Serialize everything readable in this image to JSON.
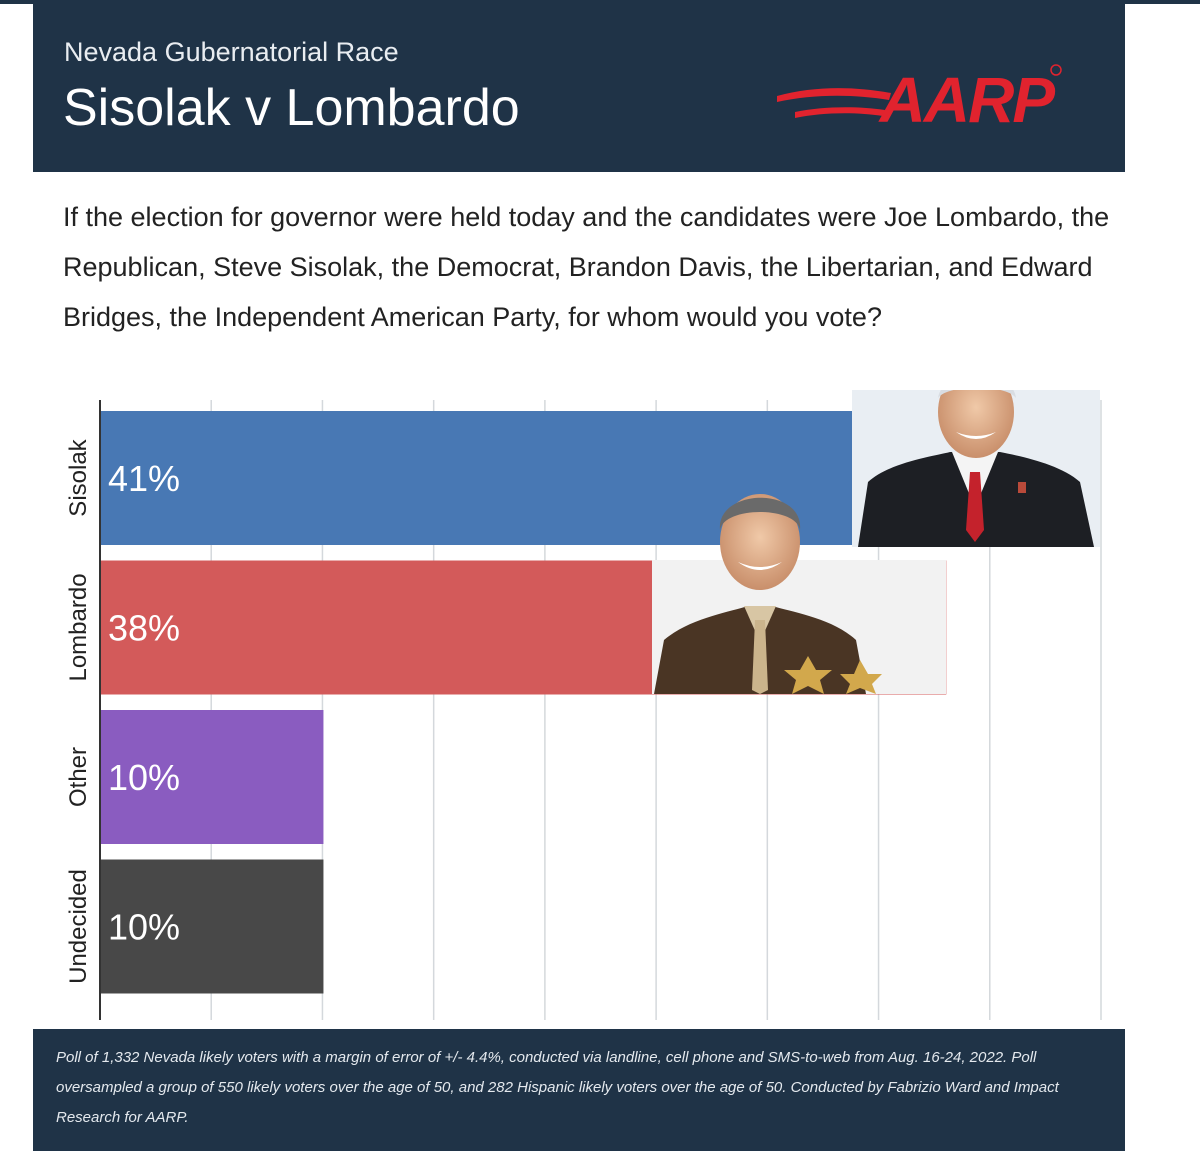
{
  "header": {
    "kicker": "Nevada Gubernatorial Race",
    "headline": "Sisolak v Lombardo",
    "logo_text": "AARP",
    "logo_color": "#e1232e"
  },
  "question": "If the election for governor were held today and the candidates were Joe Lombardo, the Republican, Steve Sisolak, the Democrat, Brandon Davis, the Libertarian, and Edward Bridges, the Independent American Party, for whom would you vote?",
  "chart_data": {
    "type": "bar",
    "orientation": "horizontal",
    "categories": [
      "Sisolak",
      "Lombardo",
      "Other",
      "Undecided"
    ],
    "values": [
      41,
      38,
      10,
      10
    ],
    "value_labels": [
      "41%",
      "38%",
      "10%",
      "10%"
    ],
    "colors": [
      "#4878b4",
      "#d35a5a",
      "#8a5cc0",
      "#484848"
    ],
    "xlim": [
      0,
      45
    ],
    "grid": true,
    "title": "",
    "xlabel": "",
    "ylabel": ""
  },
  "photos": [
    {
      "name": "sisolak-photo",
      "subject": "Steve Sisolak portrait"
    },
    {
      "name": "lombardo-photo",
      "subject": "Joe Lombardo portrait in sheriff uniform"
    }
  ],
  "footer": {
    "note": "Poll of 1,332 Nevada likely voters with a margin of error of +/- 4.4%, conducted via landline, cell phone and SMS-to-web from Aug. 16-24, 2022. Poll oversampled a group of 550 likely voters over the age of 50, and 282 Hispanic likely voters over the age of 50. Conducted by Fabrizio Ward and Impact Research for AARP.",
    "bg": "#1f3347"
  }
}
